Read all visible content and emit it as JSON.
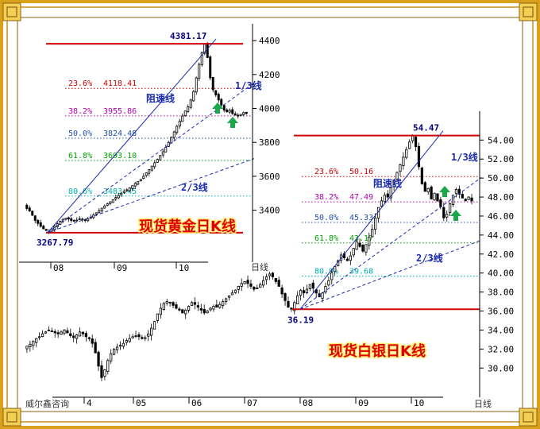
{
  "colors": {
    "frame_gold": "#d9a01c",
    "frame_dark": "#8a6310",
    "candle_up": "#ffffff",
    "candle_down": "#000000",
    "level_line": "#d00000",
    "resist_line": "#1a2bb0",
    "caption": "#e00000",
    "caption_glow": "#fff176",
    "arrow": "#1aa84a",
    "fib_23": "#cc0000",
    "fib_38": "#b000b0",
    "fib_50": "#1f4fa8",
    "fib_61": "#00a000",
    "fib_80": "#00b0b0"
  },
  "chart_data": [
    {
      "id": "gold",
      "type": "candlestick",
      "title": "现货黄金日K线",
      "axis_unit_label": "日线",
      "x_months": [
        "08",
        "09",
        "10"
      ],
      "ylim": [
        3150,
        4480
      ],
      "y_ticks": [
        3400,
        3600,
        3800,
        4000,
        4200,
        4400
      ],
      "high_label": "4381.17",
      "low_label": "3267.79",
      "high": 4381.17,
      "low": 3267.79,
      "fib_levels": [
        {
          "pct": "23.6%",
          "value": "4118.41",
          "v": 4118.41,
          "colorKey": "fib_23"
        },
        {
          "pct": "38.2%",
          "value": "3955.86",
          "v": 3955.86,
          "colorKey": "fib_38"
        },
        {
          "pct": "50.0%",
          "value": "3824.48",
          "v": 3824.48,
          "colorKey": "fib_50"
        },
        {
          "pct": "61.8%",
          "value": "3693.10",
          "v": 3693.1,
          "colorKey": "fib_61"
        },
        {
          "pct": "80.6%",
          "value": "3483.45",
          "v": 3483.45,
          "colorKey": "fib_80"
        }
      ],
      "line_labels": {
        "resistance": "阻速线",
        "one_third": "1/3线",
        "two_third": "2/3线"
      },
      "closes": [
        3410,
        3395,
        3370,
        3340,
        3322,
        3305,
        3290,
        3280,
        3275,
        3290,
        3305,
        3320,
        3335,
        3345,
        3352,
        3348,
        3340,
        3335,
        3342,
        3350,
        3348,
        3342,
        3350,
        3360,
        3372,
        3385,
        3398,
        3412,
        3425,
        3438,
        3450,
        3462,
        3475,
        3488,
        3500,
        3512,
        3520,
        3532,
        3545,
        3558,
        3570,
        3582,
        3600,
        3620,
        3640,
        3660,
        3680,
        3700,
        3722,
        3745,
        3770,
        3800,
        3830,
        3862,
        3895,
        3925,
        3955,
        3985,
        4010,
        4050,
        4100,
        4180,
        4260,
        4330,
        4381,
        4300,
        4180,
        4110,
        4080,
        4050,
        4020,
        3990,
        3980,
        3990,
        3970,
        3960,
        3955,
        3965,
        3975,
        3970
      ]
    },
    {
      "id": "silver",
      "type": "candlestick",
      "title": "现货白银日K线",
      "axis_unit_label": "日线",
      "x_months": [
        "4",
        "05",
        "06",
        "07",
        "08",
        "09",
        "10"
      ],
      "ylim": [
        28.6,
        56.2
      ],
      "y_ticks": [
        30,
        32,
        34,
        36,
        38,
        40,
        42,
        44,
        46,
        48,
        50,
        52,
        54
      ],
      "high_label": "54.47",
      "low_label": "36.19",
      "high": 54.47,
      "low": 36.19,
      "fib_levels": [
        {
          "pct": "23.6%",
          "value": "50.16",
          "v": 50.16,
          "colorKey": "fib_23"
        },
        {
          "pct": "38.2%",
          "value": "47.49",
          "v": 47.49,
          "colorKey": "fib_38"
        },
        {
          "pct": "50.0%",
          "value": "45.33",
          "v": 45.33,
          "colorKey": "fib_50"
        },
        {
          "pct": "61.8%",
          "value": "43.17",
          "v": 43.17,
          "colorKey": "fib_61"
        },
        {
          "pct": "80.9%",
          "value": "39.68",
          "v": 39.68,
          "colorKey": "fib_80"
        }
      ],
      "line_labels": {
        "resistance": "阻速线",
        "one_third": "1/3线",
        "two_third": "2/3线"
      },
      "closes": [
        32.3,
        32.5,
        32.8,
        33.1,
        33.3,
        33.6,
        33.8,
        34.0,
        33.9,
        33.7,
        33.6,
        33.8,
        34.0,
        33.7,
        33.4,
        33.2,
        33.5,
        33.8,
        33.6,
        33.3,
        33.1,
        32.6,
        31.6,
        30.2,
        29.0,
        29.8,
        30.8,
        31.5,
        32.0,
        32.2,
        32.4,
        32.6,
        32.9,
        33.1,
        33.3,
        33.4,
        33.3,
        33.1,
        33.2,
        33.6,
        34.2,
        34.9,
        35.7,
        36.3,
        36.8,
        37.0,
        36.9,
        36.6,
        36.3,
        36.1,
        35.8,
        36.1,
        36.5,
        36.9,
        36.7,
        36.4,
        36.1,
        35.8,
        36.0,
        36.3,
        36.5,
        36.4,
        36.7,
        37.0,
        37.3,
        37.6,
        37.9,
        38.2,
        38.6,
        38.9,
        39.1,
        38.9,
        38.6,
        38.3,
        38.4,
        38.8,
        39.2,
        39.6,
        39.9,
        39.6,
        39.1,
        38.6,
        37.8,
        37.1,
        36.4,
        36.2,
        36.9,
        37.6,
        38.2,
        37.9,
        38.3,
        38.8,
        38.4,
        37.9,
        37.5,
        37.9,
        38.6,
        39.2,
        40.0,
        40.7,
        41.3,
        41.9,
        41.6,
        41.3,
        41.8,
        42.6,
        43.3,
        42.8,
        42.3,
        43.0,
        43.8,
        44.6,
        45.8,
        46.9,
        47.6,
        48.2,
        48.0,
        49.0,
        49.8,
        50.6,
        51.4,
        52.2,
        53.0,
        53.8,
        54.47,
        53.3,
        51.2,
        49.4,
        48.6,
        48.9,
        47.8,
        48.4,
        47.6,
        47.0,
        45.8,
        46.2,
        47.3,
        48.2,
        48.8,
        48.3,
        47.9,
        47.6,
        48.0,
        47.6
      ]
    }
  ],
  "footer": {
    "brand": "威尔鑫咨询"
  }
}
